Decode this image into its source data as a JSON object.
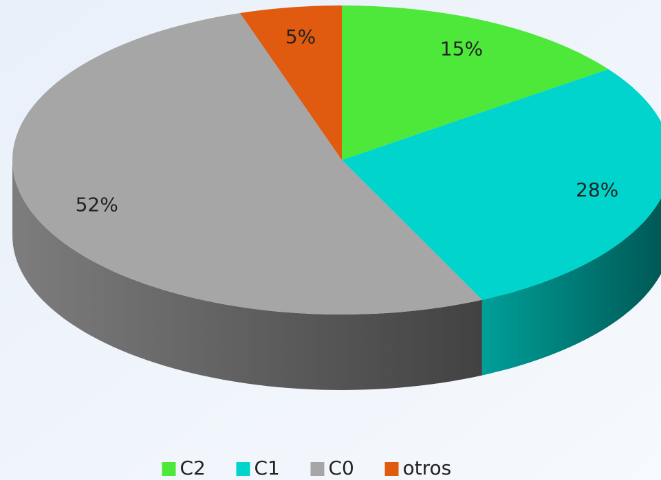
{
  "chart_data": {
    "type": "pie",
    "categories": [
      "C2",
      "C1",
      "C0",
      "otros"
    ],
    "values": [
      15,
      28,
      52,
      5
    ],
    "value_labels": [
      "15%",
      "28%",
      "52%",
      "5%"
    ],
    "colors": [
      "#4de83a",
      "#00d4cc",
      "#a6a6a6",
      "#e05a0f"
    ],
    "legend": "bottom"
  }
}
